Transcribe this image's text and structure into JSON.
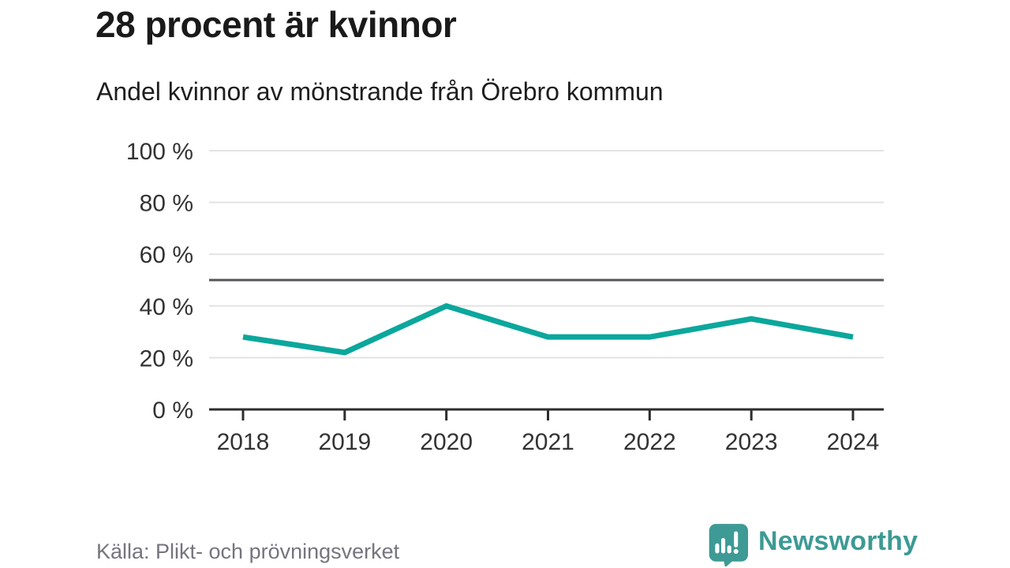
{
  "header": {
    "title": "28 procent är kvinnor",
    "subtitle": "Andel kvinnor av mönstrande från Örebro kommun"
  },
  "chart_data": {
    "type": "line",
    "x": [
      "2018",
      "2019",
      "2020",
      "2021",
      "2022",
      "2023",
      "2024"
    ],
    "values": [
      28,
      22,
      40,
      28,
      28,
      35,
      28
    ],
    "title": "Andel kvinnor av mönstrande från Örebro kommun",
    "xlabel": "",
    "ylabel": "",
    "ylim": [
      0,
      100
    ],
    "yticks": [
      0,
      20,
      40,
      60,
      80,
      100
    ],
    "ytick_suffix": " %",
    "reference_line": 50,
    "grid": true,
    "legend": "none",
    "colors": {
      "line": "#0ba79c",
      "grid": "#e3e3e3",
      "axis": "#2d2d2d",
      "reference": "#55565a",
      "tick_label": "#333333"
    }
  },
  "footer": {
    "source": "Källa: Plikt- och prövningsverket",
    "brand": "Newsworthy",
    "brand_color": "#3d9a94",
    "logo_icon": "speech-bubble-bar-chart-icon"
  }
}
